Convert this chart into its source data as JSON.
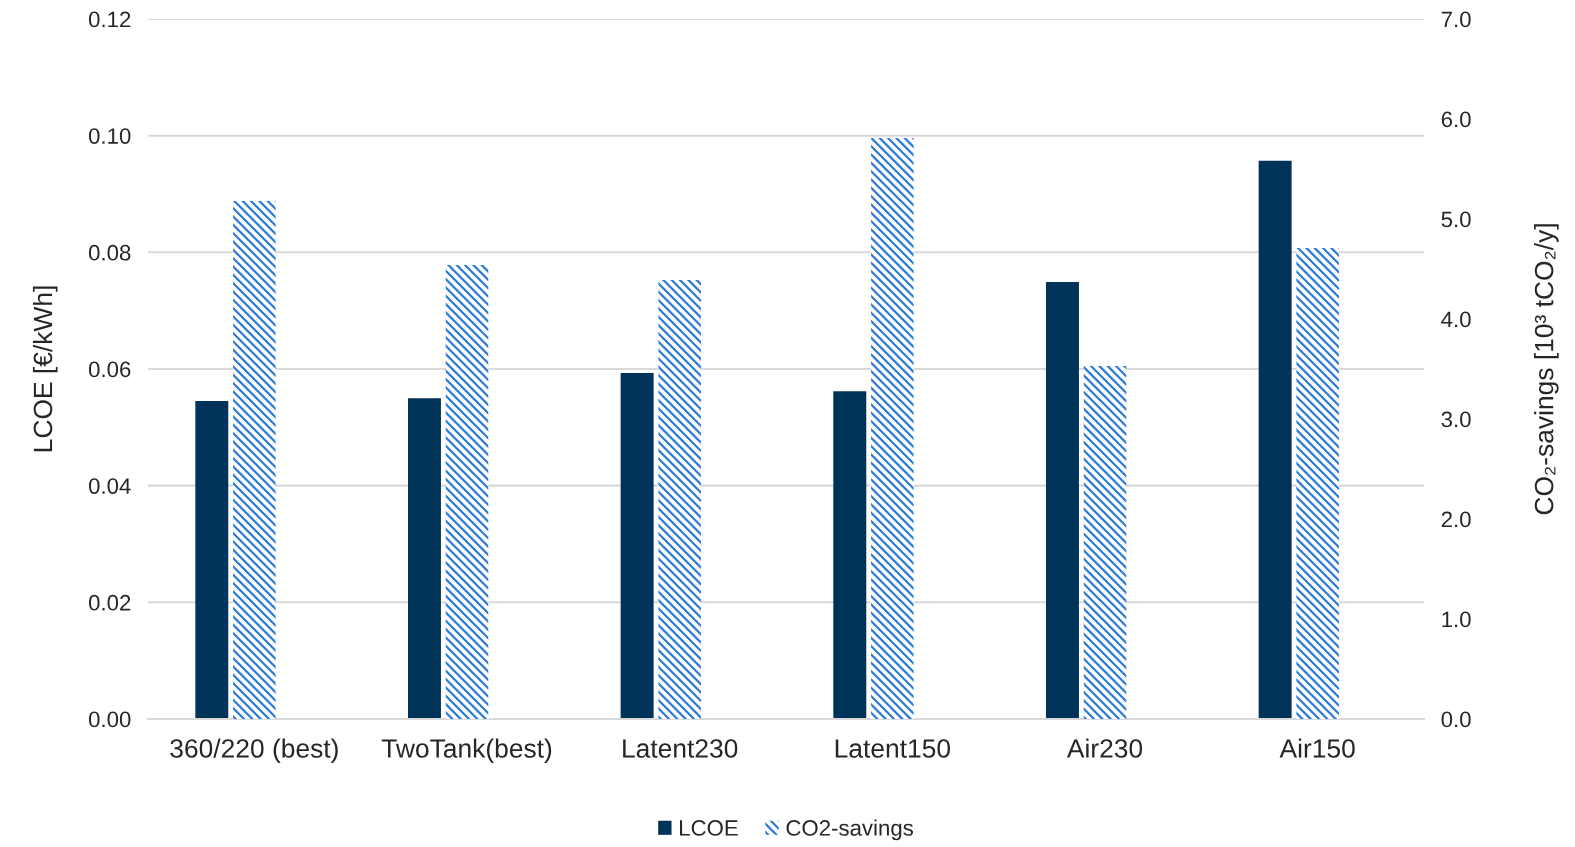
{
  "chart_data": {
    "type": "bar",
    "categories": [
      "360/220 (best)",
      "TwoTank(best)",
      "Latent230",
      "Latent150",
      "Air230",
      "Air150"
    ],
    "series": [
      {
        "name": "LCOE",
        "color": "#003359",
        "values": [
          0.0545,
          0.055,
          0.0593,
          0.0562,
          0.0749,
          0.0957
        ]
      },
      {
        "name": "CO2-savings",
        "color": "#2e7bd6",
        "axis": "y2",
        "values": [
          5.18,
          4.54,
          4.39,
          5.81,
          3.53,
          4.71
        ]
      }
    ],
    "ylabel": "LCOE [€/kWh]",
    "y2label": "CO₂-savings [10³ tCO₂/y]",
    "ylim": [
      0,
      0.12
    ],
    "yticks": [
      {
        "value": 0,
        "label": "0.00"
      },
      {
        "value": 0.02,
        "label": "0.02"
      },
      {
        "value": 0.04,
        "label": "0.04"
      },
      {
        "value": 0.06,
        "label": "0.06"
      },
      {
        "value": 0.08,
        "label": "0.08"
      },
      {
        "value": 0.1,
        "label": "0.10"
      },
      {
        "value": 0.12,
        "label": "0.12"
      }
    ],
    "y2lim": [
      0,
      7
    ],
    "y2ticks": [
      {
        "value": 0,
        "label": "0.0"
      },
      {
        "value": 1,
        "label": "1.0"
      },
      {
        "value": 2,
        "label": "2.0"
      },
      {
        "value": 3,
        "label": "3.0"
      },
      {
        "value": 4,
        "label": "4.0"
      },
      {
        "value": 5,
        "label": "5.0"
      },
      {
        "value": 6,
        "label": "6.0"
      },
      {
        "value": 7,
        "label": "7.0"
      }
    ],
    "grid": "y",
    "legend": "bottom"
  }
}
